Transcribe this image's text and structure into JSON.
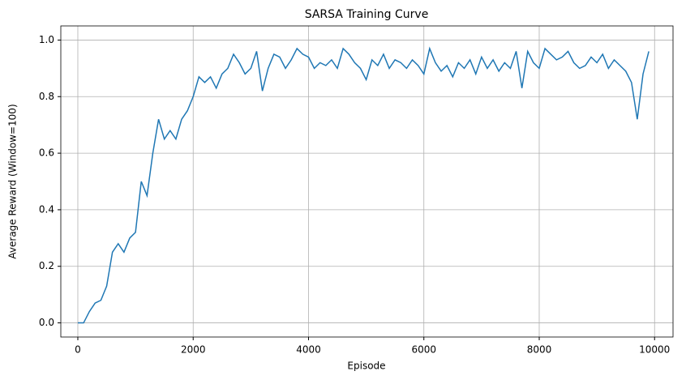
{
  "chart_data": {
    "type": "line",
    "title": "SARSA Training Curve",
    "xlabel": "Episode",
    "ylabel": "Average Reward (Window=100)",
    "x": [
      0,
      100,
      200,
      300,
      400,
      500,
      600,
      700,
      800,
      900,
      1000,
      1100,
      1200,
      1300,
      1400,
      1500,
      1600,
      1700,
      1800,
      1900,
      2000,
      2100,
      2200,
      2300,
      2400,
      2500,
      2600,
      2700,
      2800,
      2900,
      3000,
      3100,
      3200,
      3300,
      3400,
      3500,
      3600,
      3700,
      3800,
      3900,
      4000,
      4100,
      4200,
      4300,
      4400,
      4500,
      4600,
      4700,
      4800,
      4900,
      5000,
      5100,
      5200,
      5300,
      5400,
      5500,
      5600,
      5700,
      5800,
      5900,
      6000,
      6100,
      6200,
      6300,
      6400,
      6500,
      6600,
      6700,
      6800,
      6900,
      7000,
      7100,
      7200,
      7300,
      7400,
      7500,
      7600,
      7700,
      7800,
      7900,
      8000,
      8100,
      8200,
      8300,
      8400,
      8500,
      8600,
      8700,
      8800,
      8900,
      9000,
      9100,
      9200,
      9300,
      9400,
      9500,
      9600,
      9700,
      9800,
      9900
    ],
    "series": [
      {
        "name": "SARSA",
        "color": "#1f77b4",
        "values": [
          0,
          0,
          0.04,
          0.07,
          0.08,
          0.13,
          0.25,
          0.28,
          0.25,
          0.3,
          0.32,
          0.5,
          0.45,
          0.6,
          0.72,
          0.65,
          0.68,
          0.65,
          0.72,
          0.75,
          0.8,
          0.87,
          0.85,
          0.87,
          0.83,
          0.88,
          0.9,
          0.95,
          0.92,
          0.88,
          0.9,
          0.96,
          0.82,
          0.9,
          0.95,
          0.94,
          0.9,
          0.93,
          0.97,
          0.95,
          0.94,
          0.9,
          0.92,
          0.91,
          0.93,
          0.9,
          0.97,
          0.95,
          0.92,
          0.9,
          0.86,
          0.93,
          0.91,
          0.95,
          0.9,
          0.93,
          0.92,
          0.9,
          0.93,
          0.91,
          0.88,
          0.97,
          0.92,
          0.89,
          0.91,
          0.87,
          0.92,
          0.9,
          0.93,
          0.88,
          0.94,
          0.9,
          0.93,
          0.89,
          0.92,
          0.9,
          0.96,
          0.83,
          0.96,
          0.92,
          0.9,
          0.97,
          0.95,
          0.93,
          0.94,
          0.96,
          0.92,
          0.9,
          0.91,
          0.94,
          0.92,
          0.95,
          0.9,
          0.93,
          0.91,
          0.89,
          0.85,
          0.72,
          0.88,
          0.96
        ]
      }
    ],
    "xlim": [
      -295,
      10320
    ],
    "ylim": [
      -0.05,
      1.05
    ],
    "xticks": [
      0,
      2000,
      4000,
      6000,
      8000,
      10000
    ],
    "yticks": [
      {
        "value": 0,
        "label": "0.0"
      },
      0.2,
      0.4,
      0.6,
      0.8,
      {
        "value": 1,
        "label": "1.0"
      }
    ],
    "grid": true
  }
}
